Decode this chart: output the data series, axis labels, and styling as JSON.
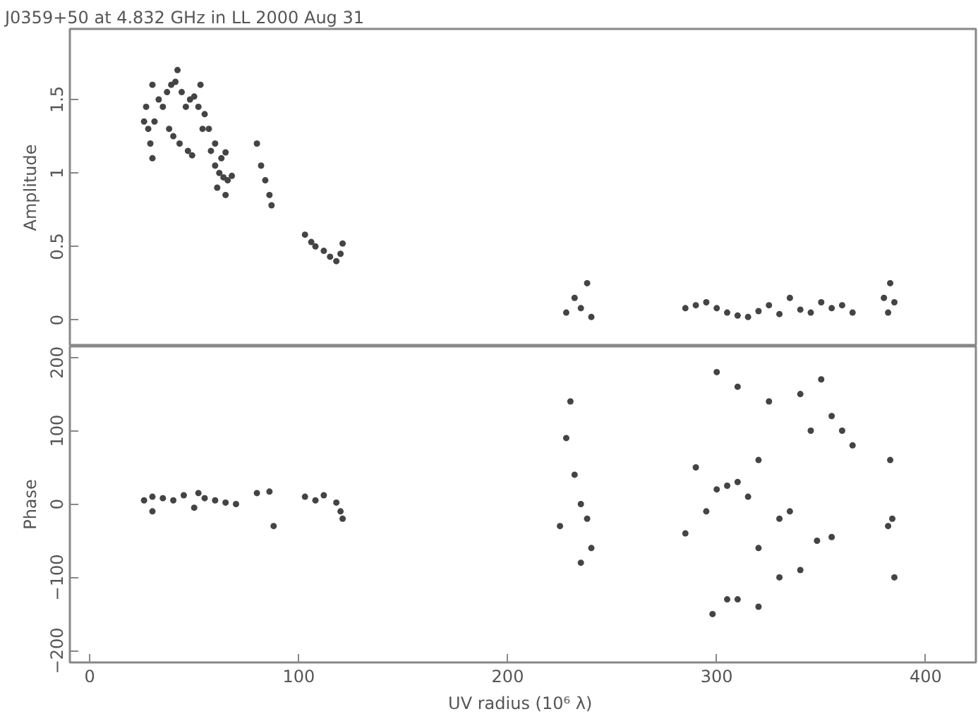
{
  "chart_data": [
    {
      "type": "scatter",
      "title": "J0359+50 at 4.832 GHz in LL  2000 Aug 31",
      "ylabel": "Amplitude",
      "color": "#444444",
      "marker": "circle",
      "tick_labels": "y",
      "xlim": [
        -9.5,
        424
      ],
      "ylim": [
        -0.18,
        1.98
      ],
      "xticks": [
        0,
        100,
        200,
        300,
        400
      ],
      "yticks": [
        0,
        0.5,
        1,
        1.5
      ],
      "x": [
        26,
        27,
        28,
        29,
        30,
        30,
        31,
        33,
        35,
        37,
        39,
        41,
        42,
        44,
        38,
        40,
        43,
        46,
        48,
        50,
        52,
        54,
        47,
        49,
        53,
        55,
        57,
        58,
        60,
        62,
        64,
        66,
        68,
        60,
        63,
        65,
        61,
        65,
        80,
        82,
        84,
        86,
        87,
        103,
        106,
        108,
        112,
        115,
        118,
        120,
        121,
        228,
        232,
        235,
        238,
        240,
        285,
        290,
        295,
        300,
        305,
        310,
        315,
        320,
        325,
        330,
        335,
        340,
        345,
        350,
        355,
        360,
        365,
        380,
        383,
        385,
        382
      ],
      "values": [
        1.35,
        1.45,
        1.3,
        1.2,
        1.6,
        1.1,
        1.35,
        1.5,
        1.45,
        1.55,
        1.6,
        1.62,
        1.7,
        1.55,
        1.3,
        1.25,
        1.2,
        1.45,
        1.5,
        1.52,
        1.45,
        1.3,
        1.15,
        1.12,
        1.6,
        1.4,
        1.3,
        1.15,
        1.05,
        1.0,
        0.97,
        0.95,
        0.98,
        1.2,
        1.1,
        1.14,
        0.9,
        0.85,
        1.2,
        1.05,
        0.95,
        0.85,
        0.78,
        0.58,
        0.53,
        0.5,
        0.47,
        0.43,
        0.4,
        0.45,
        0.52,
        0.05,
        0.15,
        0.08,
        0.25,
        0.02,
        0.08,
        0.1,
        0.12,
        0.08,
        0.05,
        0.03,
        0.02,
        0.06,
        0.1,
        0.04,
        0.15,
        0.07,
        0.05,
        0.12,
        0.08,
        0.1,
        0.05,
        0.15,
        0.25,
        0.12,
        0.05
      ]
    },
    {
      "type": "scatter",
      "xlabel": "UV radius  (10⁶ λ)",
      "ylabel": "Phase",
      "color": "#444444",
      "marker": "circle",
      "xlim": [
        -9.5,
        424
      ],
      "ylim": [
        -216,
        215
      ],
      "xticks": [
        0,
        100,
        200,
        300,
        400
      ],
      "yticks": [
        -200,
        -100,
        0,
        100,
        200
      ],
      "x": [
        26,
        30,
        30,
        35,
        40,
        45,
        50,
        52,
        55,
        60,
        65,
        70,
        80,
        86,
        88,
        103,
        108,
        112,
        118,
        120,
        121,
        225,
        228,
        232,
        235,
        238,
        240,
        235,
        230,
        285,
        290,
        295,
        300,
        305,
        310,
        315,
        298,
        305,
        310,
        320,
        325,
        330,
        335,
        340,
        345,
        350,
        355,
        360,
        348,
        355,
        365,
        330,
        340,
        320,
        310,
        300,
        320,
        382,
        384,
        383,
        385
      ],
      "values": [
        5,
        -10,
        10,
        8,
        5,
        12,
        -5,
        15,
        8,
        5,
        2,
        0,
        15,
        17,
        -30,
        10,
        5,
        12,
        2,
        -10,
        -20,
        -30,
        90,
        40,
        0,
        -20,
        -60,
        -80,
        140,
        -40,
        50,
        -10,
        20,
        25,
        30,
        10,
        -150,
        -130,
        -130,
        -140,
        140,
        -20,
        -10,
        150,
        100,
        170,
        120,
        100,
        -50,
        -45,
        80,
        -100,
        -90,
        60,
        160,
        180,
        -60,
        -30,
        -20,
        60,
        -100
      ]
    }
  ]
}
